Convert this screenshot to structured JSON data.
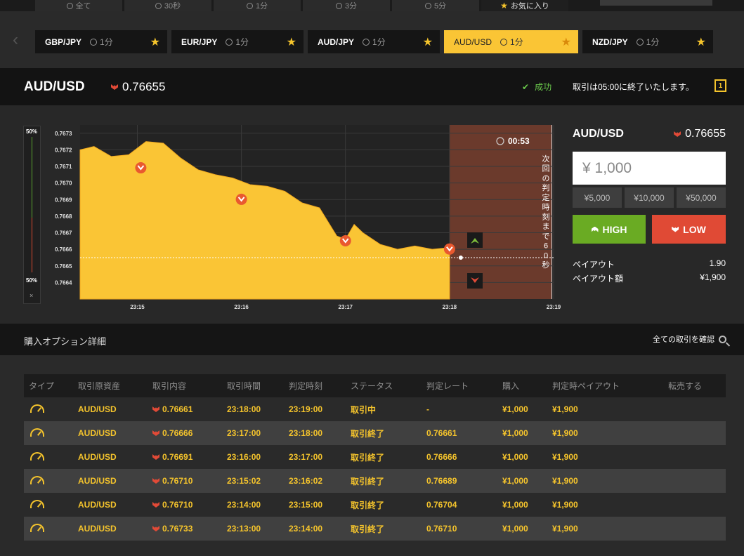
{
  "top_tabs": [
    {
      "label": "全て",
      "icon": "clock-icon"
    },
    {
      "label": "30秒",
      "icon": "clock-icon"
    },
    {
      "label": "1分",
      "icon": "clock-icon"
    },
    {
      "label": "3分",
      "icon": "clock-icon"
    },
    {
      "label": "5分",
      "icon": "clock-icon"
    },
    {
      "label": "お気に入り",
      "icon": "star-icon"
    }
  ],
  "pairs": [
    {
      "name": "GBP/JPY",
      "time": "1分"
    },
    {
      "name": "EUR/JPY",
      "time": "1分"
    },
    {
      "name": "AUD/JPY",
      "time": "1分"
    },
    {
      "name": "AUD/USD",
      "time": "1分"
    },
    {
      "name": "NZD/JPY",
      "time": "1分"
    }
  ],
  "header": {
    "pair": "AUD/USD",
    "rate": "0.76655",
    "status": "成功",
    "message": "取引は05:00に終了いたします。",
    "icon_label": "1"
  },
  "chart_data": {
    "type": "area",
    "y_ticks": [
      "0.7673",
      "0.7672",
      "0.7671",
      "0.7670",
      "0.7669",
      "0.7668",
      "0.7667",
      "0.7666",
      "0.7665",
      "0.7664"
    ],
    "x_ticks": [
      "23:15",
      "23:16",
      "23:17",
      "23:18",
      "23:19"
    ],
    "gauge_top": "50%",
    "gauge_bottom": "50%",
    "gauge_close": "×",
    "countdown": "00:53",
    "vertical_note": "次回の判定時刻まで60秒",
    "current_rate": "0.76655",
    "colors": {
      "area": "#fac535",
      "zone": "#6b3a2c"
    },
    "series": [
      {
        "x": "23:14:27",
        "y": 0.7672
      },
      {
        "x": "23:14:35",
        "y": 0.76722
      },
      {
        "x": "23:14:45",
        "y": 0.76716
      },
      {
        "x": "23:14:55",
        "y": 0.76717
      },
      {
        "x": "23:15:05",
        "y": 0.76725
      },
      {
        "x": "23:15:15",
        "y": 0.76724
      },
      {
        "x": "23:15:25",
        "y": 0.76715
      },
      {
        "x": "23:15:35",
        "y": 0.76708
      },
      {
        "x": "23:15:45",
        "y": 0.76705
      },
      {
        "x": "23:15:55",
        "y": 0.76703
      },
      {
        "x": "23:16:05",
        "y": 0.76699
      },
      {
        "x": "23:16:15",
        "y": 0.76698
      },
      {
        "x": "23:16:25",
        "y": 0.76695
      },
      {
        "x": "23:16:35",
        "y": 0.76688
      },
      {
        "x": "23:16:45",
        "y": 0.76685
      },
      {
        "x": "23:16:55",
        "y": 0.76668
      },
      {
        "x": "23:17:00",
        "y": 0.76666
      },
      {
        "x": "23:17:05",
        "y": 0.76675
      },
      {
        "x": "23:17:10",
        "y": 0.7667
      },
      {
        "x": "23:17:20",
        "y": 0.76663
      },
      {
        "x": "23:17:30",
        "y": 0.7666
      },
      {
        "x": "23:17:40",
        "y": 0.76662
      },
      {
        "x": "23:17:50",
        "y": 0.7666
      },
      {
        "x": "23:18:00",
        "y": 0.76661
      }
    ],
    "entries": [
      {
        "time": "23:15:02",
        "rate": 0.7671
      },
      {
        "time": "23:16:00",
        "rate": 0.76691
      },
      {
        "time": "23:17:00",
        "rate": 0.76666
      },
      {
        "time": "23:18:00",
        "rate": 0.76661
      }
    ]
  },
  "panel": {
    "pair": "AUD/USD",
    "rate": "0.76655",
    "amount": "¥ 1,000",
    "quick": [
      "¥5,000",
      "¥10,000",
      "¥50,000"
    ],
    "high": "HIGH",
    "low": "LOW",
    "payout_label": "ペイアウト",
    "payout": "1.90",
    "payout_amt_label": "ペイアウト額",
    "payout_amt": "¥1,900"
  },
  "details": {
    "title": "購入オプション詳細",
    "confirm": "全ての取引を確認",
    "columns": [
      "タイプ",
      "取引原資産",
      "取引内容",
      "取引時間",
      "判定時刻",
      "ステータス",
      "判定レート",
      "購入",
      "判定時ペイアウト",
      "転売する"
    ],
    "rows": [
      {
        "asset": "AUD/USD",
        "content": "0.76661",
        "time": "23:18:00",
        "judge": "23:19:00",
        "status": "取引中",
        "rate": "-",
        "buy": "¥1,000",
        "payout": "¥1,900"
      },
      {
        "asset": "AUD/USD",
        "content": "0.76666",
        "time": "23:17:00",
        "judge": "23:18:00",
        "status": "取引終了",
        "rate": "0.76661",
        "buy": "¥1,000",
        "payout": "¥1,900"
      },
      {
        "asset": "AUD/USD",
        "content": "0.76691",
        "time": "23:16:00",
        "judge": "23:17:00",
        "status": "取引終了",
        "rate": "0.76666",
        "buy": "¥1,000",
        "payout": "¥1,900"
      },
      {
        "asset": "AUD/USD",
        "content": "0.76710",
        "time": "23:15:02",
        "judge": "23:16:02",
        "status": "取引終了",
        "rate": "0.76689",
        "buy": "¥1,000",
        "payout": "¥1,900"
      },
      {
        "asset": "AUD/USD",
        "content": "0.76710",
        "time": "23:14:00",
        "judge": "23:15:00",
        "status": "取引終了",
        "rate": "0.76704",
        "buy": "¥1,000",
        "payout": "¥1,900"
      },
      {
        "asset": "AUD/USD",
        "content": "0.76733",
        "time": "23:13:00",
        "judge": "23:14:00",
        "status": "取引終了",
        "rate": "0.76710",
        "buy": "¥1,000",
        "payout": "¥1,900"
      }
    ]
  }
}
